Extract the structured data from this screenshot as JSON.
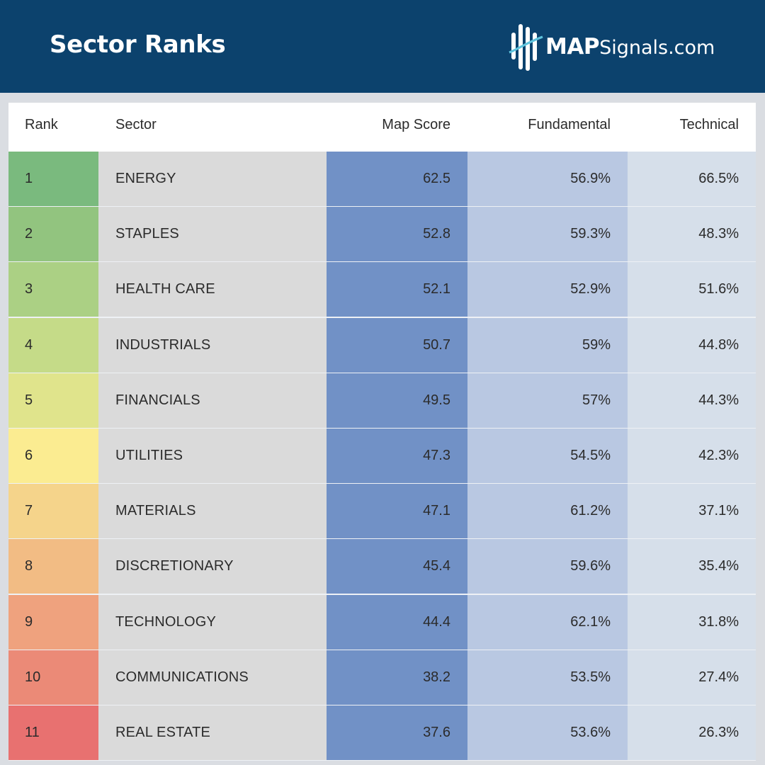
{
  "header": {
    "title": "Sector Ranks",
    "logo_bold": "MAP",
    "logo_light": "Signals.com"
  },
  "colors": {
    "header_bg": "#0c426d",
    "map_score_col": "#7191c6",
    "fundamental_col": "#b9c8e2",
    "technical_col": "#d6dfea",
    "sector_col": "#dadada"
  },
  "chart_data": {
    "type": "table",
    "title": "Sector Ranks",
    "columns": [
      "Rank",
      "Sector",
      "Map Score",
      "Fundamental",
      "Technical"
    ],
    "rows": [
      {
        "rank": "1",
        "sector": "ENERGY",
        "map_score": "62.5",
        "fundamental": "56.9%",
        "technical": "66.5%",
        "rank_color": "#7aba7e"
      },
      {
        "rank": "2",
        "sector": "STAPLES",
        "map_score": "52.8",
        "fundamental": "59.3%",
        "technical": "48.3%",
        "rank_color": "#92c47f"
      },
      {
        "rank": "3",
        "sector": "HEALTH CARE",
        "map_score": "52.1",
        "fundamental": "52.9%",
        "technical": "51.6%",
        "rank_color": "#abd084"
      },
      {
        "rank": "4",
        "sector": "INDUSTRIALS",
        "map_score": "50.7",
        "fundamental": "59%",
        "technical": "44.8%",
        "rank_color": "#c5db88"
      },
      {
        "rank": "5",
        "sector": "FINANCIALS",
        "map_score": "49.5",
        "fundamental": "57%",
        "technical": "44.3%",
        "rank_color": "#e0e48c"
      },
      {
        "rank": "6",
        "sector": "UTILITIES",
        "map_score": "47.3",
        "fundamental": "54.5%",
        "technical": "42.3%",
        "rank_color": "#fbec91"
      },
      {
        "rank": "7",
        "sector": "MATERIALS",
        "map_score": "47.1",
        "fundamental": "61.2%",
        "technical": "37.1%",
        "rank_color": "#f5d48b"
      },
      {
        "rank": "8",
        "sector": "DISCRETIONARY",
        "map_score": "45.4",
        "fundamental": "59.6%",
        "technical": "35.4%",
        "rank_color": "#f2bc84"
      },
      {
        "rank": "9",
        "sector": "TECHNOLOGY",
        "map_score": "44.4",
        "fundamental": "62.1%",
        "technical": "31.8%",
        "rank_color": "#efa27e"
      },
      {
        "rank": "10",
        "sector": "COMMUNICATIONS",
        "map_score": "38.2",
        "fundamental": "53.5%",
        "technical": "27.4%",
        "rank_color": "#eb8a77"
      },
      {
        "rank": "11",
        "sector": "REAL ESTATE",
        "map_score": "37.6",
        "fundamental": "53.6%",
        "technical": "26.3%",
        "rank_color": "#e87170"
      }
    ]
  }
}
